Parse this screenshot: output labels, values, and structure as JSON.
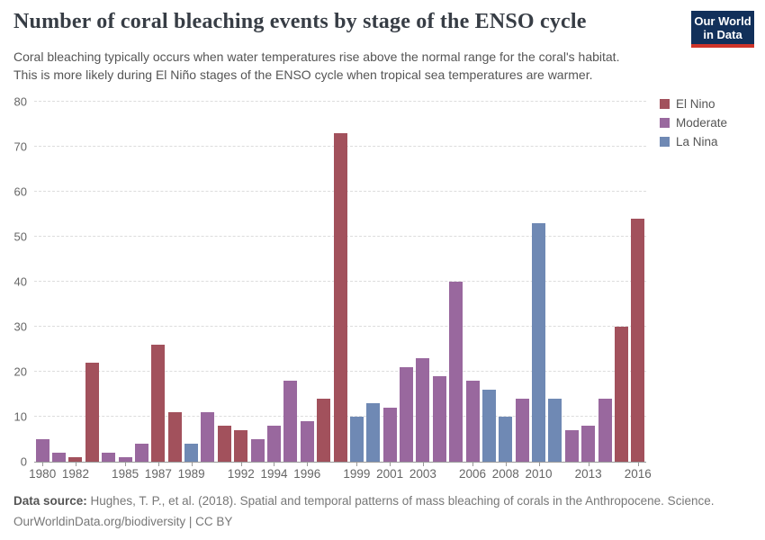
{
  "header": {
    "title": "Number of coral bleaching events by stage of the ENSO cycle",
    "subtitle_line1": "Coral bleaching typically occurs when water temperatures rise above the normal range for the coral's habitat.",
    "subtitle_line2": "This is more likely during El Niño stages of the ENSO cycle when tropical sea temperatures are warmer.",
    "logo": {
      "line1": "Our World",
      "line2": "in Data",
      "bg_color": "#12305a",
      "accent_color": "#cf3429"
    }
  },
  "chart_data": {
    "type": "bar",
    "title": "Number of coral bleaching events by stage of the ENSO cycle",
    "xlabel": "",
    "ylabel": "",
    "ylim": [
      0,
      80
    ],
    "yticks": [
      0,
      10,
      20,
      30,
      40,
      50,
      60,
      70,
      80
    ],
    "xticks": [
      1980,
      1982,
      1985,
      1987,
      1989,
      1992,
      1994,
      1996,
      1999,
      2001,
      2003,
      2006,
      2008,
      2010,
      2013,
      2016
    ],
    "grid": "horizontal-dashed",
    "legend_position": "right",
    "legend": [
      {
        "label": "El Nino",
        "color": "#a2515c"
      },
      {
        "label": "Moderate",
        "color": "#99689e"
      },
      {
        "label": "La Nina",
        "color": "#6f89b4"
      }
    ],
    "points": [
      {
        "year": 1980,
        "value": 5,
        "phase": "Moderate"
      },
      {
        "year": 1981,
        "value": 2,
        "phase": "Moderate"
      },
      {
        "year": 1982,
        "value": 1,
        "phase": "El Nino"
      },
      {
        "year": 1983,
        "value": 22,
        "phase": "El Nino"
      },
      {
        "year": 1984,
        "value": 2,
        "phase": "Moderate"
      },
      {
        "year": 1985,
        "value": 1,
        "phase": "Moderate"
      },
      {
        "year": 1986,
        "value": 4,
        "phase": "Moderate"
      },
      {
        "year": 1987,
        "value": 26,
        "phase": "El Nino"
      },
      {
        "year": 1988,
        "value": 11,
        "phase": "El Nino"
      },
      {
        "year": 1989,
        "value": 4,
        "phase": "La Nina"
      },
      {
        "year": 1990,
        "value": 11,
        "phase": "Moderate"
      },
      {
        "year": 1991,
        "value": 8,
        "phase": "El Nino"
      },
      {
        "year": 1992,
        "value": 7,
        "phase": "El Nino"
      },
      {
        "year": 1993,
        "value": 5,
        "phase": "Moderate"
      },
      {
        "year": 1994,
        "value": 8,
        "phase": "Moderate"
      },
      {
        "year": 1995,
        "value": 18,
        "phase": "Moderate"
      },
      {
        "year": 1996,
        "value": 9,
        "phase": "Moderate"
      },
      {
        "year": 1997,
        "value": 14,
        "phase": "El Nino"
      },
      {
        "year": 1998,
        "value": 73,
        "phase": "El Nino"
      },
      {
        "year": 1999,
        "value": 10,
        "phase": "La Nina"
      },
      {
        "year": 2000,
        "value": 13,
        "phase": "La Nina"
      },
      {
        "year": 2001,
        "value": 12,
        "phase": "Moderate"
      },
      {
        "year": 2002,
        "value": 21,
        "phase": "Moderate"
      },
      {
        "year": 2003,
        "value": 23,
        "phase": "Moderate"
      },
      {
        "year": 2004,
        "value": 19,
        "phase": "Moderate"
      },
      {
        "year": 2005,
        "value": 40,
        "phase": "Moderate"
      },
      {
        "year": 2006,
        "value": 18,
        "phase": "Moderate"
      },
      {
        "year": 2007,
        "value": 16,
        "phase": "La Nina"
      },
      {
        "year": 2008,
        "value": 10,
        "phase": "La Nina"
      },
      {
        "year": 2009,
        "value": 14,
        "phase": "Moderate"
      },
      {
        "year": 2010,
        "value": 53,
        "phase": "La Nina"
      },
      {
        "year": 2011,
        "value": 14,
        "phase": "La Nina"
      },
      {
        "year": 2012,
        "value": 7,
        "phase": "Moderate"
      },
      {
        "year": 2013,
        "value": 8,
        "phase": "Moderate"
      },
      {
        "year": 2014,
        "value": 14,
        "phase": "Moderate"
      },
      {
        "year": 2015,
        "value": 30,
        "phase": "El Nino"
      },
      {
        "year": 2016,
        "value": 54,
        "phase": "El Nino"
      }
    ]
  },
  "footer": {
    "source_label": "Data source:",
    "source_text": "Hughes, T. P., et al. (2018). Spatial and temporal patterns of mass bleaching of corals in the Anthropocene. Science.",
    "link": "OurWorldinData.org/biodiversity",
    "separator": "|",
    "license": "CC BY"
  }
}
